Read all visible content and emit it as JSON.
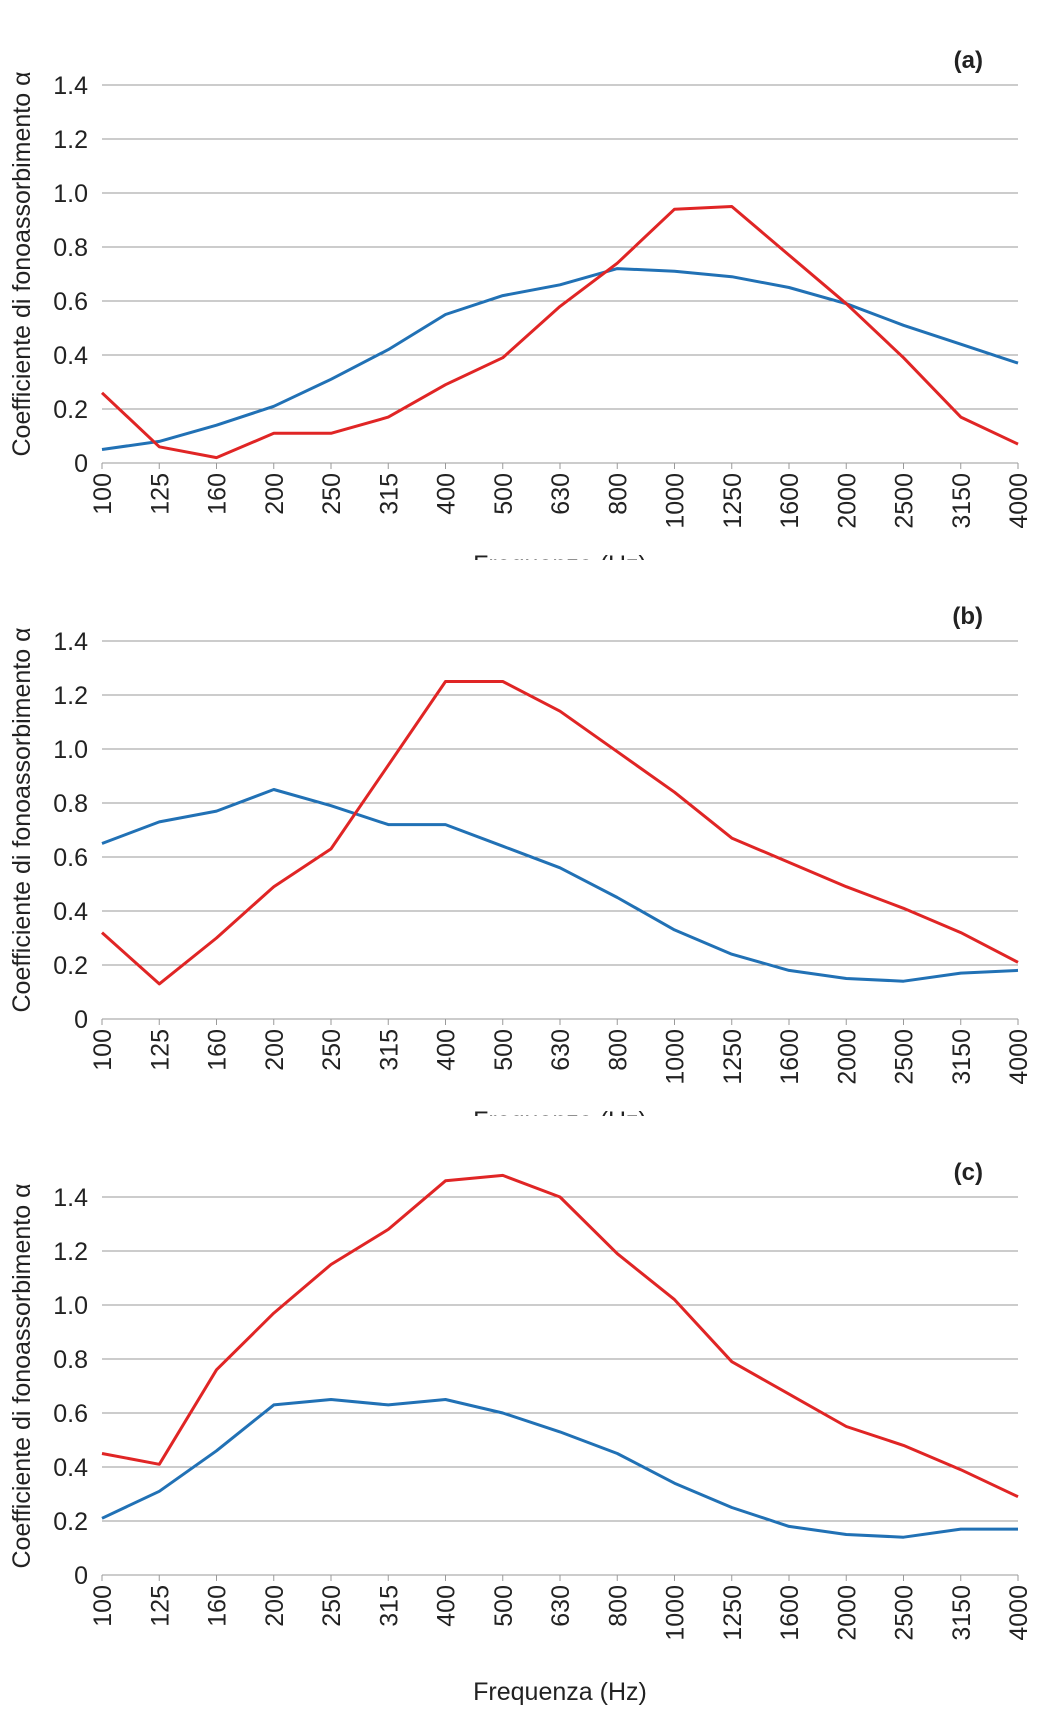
{
  "chart_data": [
    {
      "type": "line",
      "title": "(a)",
      "xlabel": "Frequenza (Hz)",
      "ylabel": "Coefficiente di fonoassorbimento α",
      "categories": [
        "100",
        "125",
        "160",
        "200",
        "250",
        "315",
        "400",
        "500",
        "630",
        "800",
        "1000",
        "1250",
        "1600",
        "2000",
        "2500",
        "3150",
        "4000"
      ],
      "yticks": [
        "0",
        "0.2",
        "0.4",
        "0.6",
        "0.8",
        "1.0",
        "1.2",
        "1.4"
      ],
      "ylim": [
        0,
        1.4
      ],
      "grid": true,
      "series": [
        {
          "color": "#2171b5",
          "values": [
            0.05,
            0.08,
            0.14,
            0.21,
            0.31,
            0.42,
            0.55,
            0.62,
            0.66,
            0.72,
            0.71,
            0.69,
            0.65,
            0.59,
            0.51,
            0.44,
            0.37
          ]
        },
        {
          "color": "#e02525",
          "values": [
            0.26,
            0.06,
            0.02,
            0.11,
            0.11,
            0.17,
            0.29,
            0.39,
            0.58,
            0.74,
            0.94,
            0.95,
            0.77,
            0.59,
            0.39,
            0.17,
            0.07
          ]
        }
      ]
    },
    {
      "type": "line",
      "title": "(b)",
      "xlabel": "Frequenza (Hz)",
      "ylabel": "Coefficiente di fonoassorbimento α",
      "categories": [
        "100",
        "125",
        "160",
        "200",
        "250",
        "315",
        "400",
        "500",
        "630",
        "800",
        "1000",
        "1250",
        "1600",
        "2000",
        "2500",
        "3150",
        "4000"
      ],
      "yticks": [
        "0",
        "0.2",
        "0.4",
        "0.6",
        "0.8",
        "1.0",
        "1.2",
        "1.4"
      ],
      "ylim": [
        0,
        1.4
      ],
      "grid": true,
      "series": [
        {
          "color": "#2171b5",
          "values": [
            0.65,
            0.73,
            0.77,
            0.85,
            0.79,
            0.72,
            0.72,
            0.64,
            0.56,
            0.45,
            0.33,
            0.24,
            0.18,
            0.15,
            0.14,
            0.17,
            0.18
          ]
        },
        {
          "color": "#e02525",
          "values": [
            0.32,
            0.13,
            0.3,
            0.49,
            0.63,
            0.94,
            1.25,
            1.25,
            1.14,
            0.99,
            0.84,
            0.67,
            0.58,
            0.49,
            0.41,
            0.32,
            0.21
          ]
        }
      ]
    },
    {
      "type": "line",
      "title": "(c)",
      "xlabel": "Frequenza (Hz)",
      "ylabel": "Coefficiente di fonoassorbimento α",
      "categories": [
        "100",
        "125",
        "160",
        "200",
        "250",
        "315",
        "400",
        "500",
        "630",
        "800",
        "1000",
        "1250",
        "1600",
        "2000",
        "2500",
        "3150",
        "4000"
      ],
      "yticks": [
        "0",
        "0.2",
        "0.4",
        "0.6",
        "0.8",
        "1.0",
        "1.2",
        "1.4"
      ],
      "ylim": [
        0,
        1.4
      ],
      "grid": true,
      "series": [
        {
          "color": "#2171b5",
          "values": [
            0.21,
            0.31,
            0.46,
            0.63,
            0.65,
            0.63,
            0.65,
            0.6,
            0.53,
            0.45,
            0.34,
            0.25,
            0.18,
            0.15,
            0.14,
            0.17,
            0.17
          ]
        },
        {
          "color": "#e02525",
          "values": [
            0.45,
            0.41,
            0.76,
            0.97,
            1.15,
            1.28,
            1.46,
            1.48,
            1.4,
            1.19,
            1.02,
            0.79,
            0.67,
            0.55,
            0.48,
            0.39,
            0.29
          ]
        }
      ]
    }
  ]
}
